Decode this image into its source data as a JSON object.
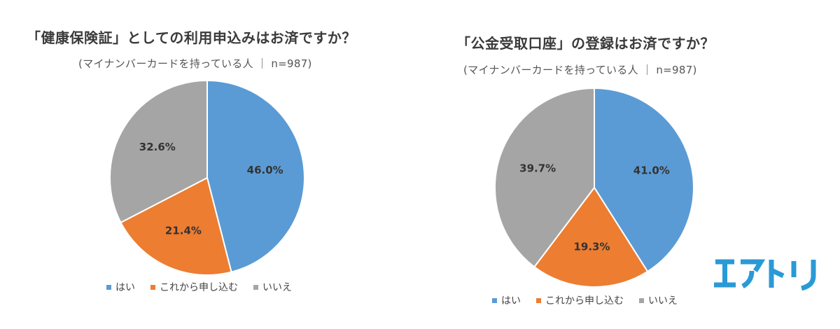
{
  "colors": {
    "yes": "#5b9bd5",
    "will_apply": "#ed7d31",
    "no": "#a5a5a5"
  },
  "chart_data": [
    {
      "type": "pie",
      "title": "「健康保険証」としての利用申込みはお済ですか？",
      "subtitle": "(マイナンバーカードを持っている人 ｜ n=987)",
      "categories": [
        "はい",
        "これから申し込む",
        "いいえ"
      ],
      "values": [
        46.0,
        21.4,
        32.6
      ],
      "labels": [
        "46.0%",
        "21.4%",
        "32.6%"
      ],
      "legend": "bottom"
    },
    {
      "type": "pie",
      "title": "「公金受取口座」の登録はお済ですか？",
      "subtitle": "(マイナンバーカードを持っている人 ｜ n=987)",
      "categories": [
        "はい",
        "これから申し込む",
        "いいえ"
      ],
      "values": [
        41.0,
        19.3,
        39.7
      ],
      "labels": [
        "41.0%",
        "19.3%",
        "39.7%"
      ],
      "legend": "bottom"
    }
  ],
  "logo": {
    "text": "エアトリ",
    "color": "#2a9ad6"
  }
}
